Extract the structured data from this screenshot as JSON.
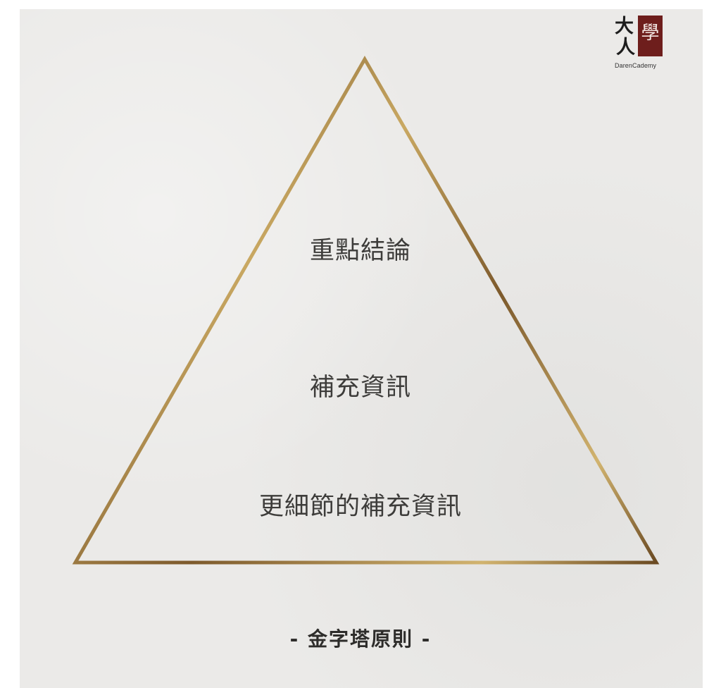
{
  "logo": {
    "cn_line1": "大",
    "cn_line2": "人",
    "seal_char": "學",
    "en": "DarenCademy"
  },
  "pyramid": {
    "tiers": [
      {
        "label": "重點結論"
      },
      {
        "label": "補充資訊"
      },
      {
        "label": "更細節的補充資訊"
      }
    ]
  },
  "caption": "- 金字塔原則 -",
  "colors": {
    "background": "#ebeae8",
    "gold_light": "#c9a862",
    "gold_dark": "#6b4a22",
    "seal": "#6e1e1c",
    "text": "#3d3c3a"
  }
}
